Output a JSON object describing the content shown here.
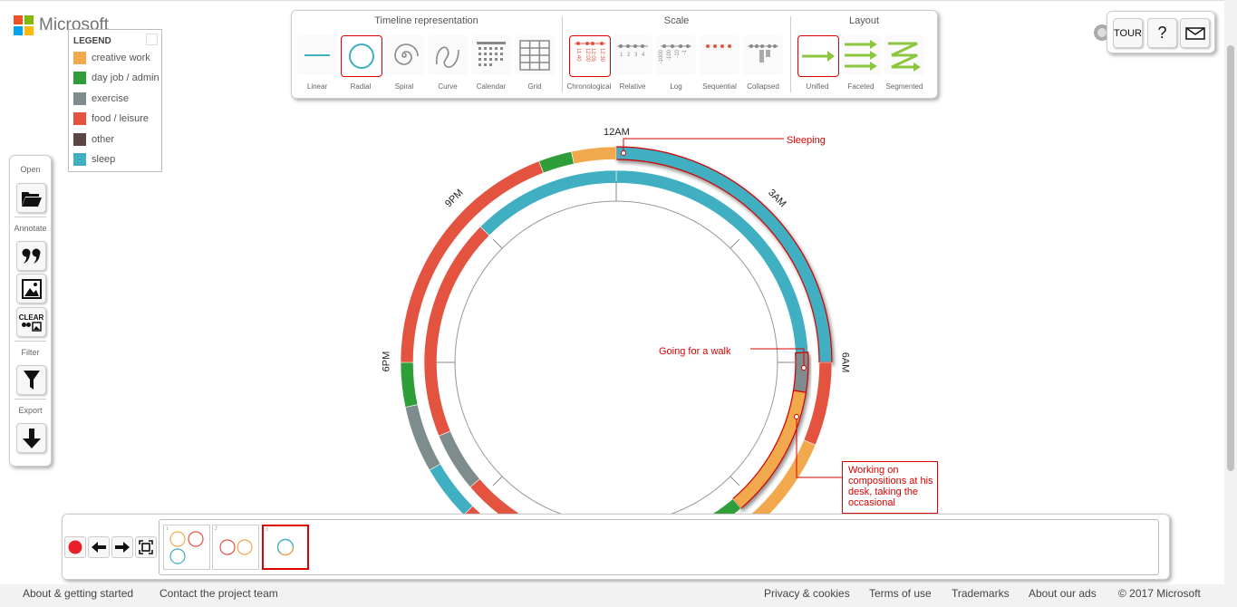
{
  "brand": {
    "name": "Microsoft"
  },
  "legend": {
    "title": "LEGEND",
    "items": [
      {
        "label": "creative work",
        "color": "#f2a94e"
      },
      {
        "label": "day job / admin",
        "color": "#2e9e38"
      },
      {
        "label": "exercise",
        "color": "#7e8c8d"
      },
      {
        "label": "food / leisure",
        "color": "#e3533f"
      },
      {
        "label": "other",
        "color": "#5a4743"
      },
      {
        "label": "sleep",
        "color": "#40afc2"
      }
    ]
  },
  "left_panel": {
    "open_label": "Open",
    "annotate_label": "Annotate",
    "clear_label": "CLEAR",
    "filter_label": "Filter",
    "export_label": "Export"
  },
  "toolbar": {
    "representation": {
      "title": "Timeline representation",
      "options": [
        "Linear",
        "Radial",
        "Spiral",
        "Curve",
        "Calendar",
        "Grid"
      ],
      "selected": "Radial"
    },
    "scale": {
      "title": "Scale",
      "options": [
        "Chronological",
        "Relative",
        "Log",
        "Sequential",
        "Collapsed"
      ],
      "selected": "Chronological",
      "chrono_ticks": [
        "11:40",
        "12:00",
        "12:05",
        "12:30"
      ],
      "relative_ticks": [
        "1",
        "2",
        "3",
        "4"
      ],
      "log_ticks": [
        "-1000",
        "-100",
        "-10",
        "-1"
      ]
    },
    "layout": {
      "title": "Layout",
      "options": [
        "Unified",
        "Faceted",
        "Segmented"
      ],
      "selected": "Unified"
    }
  },
  "top_right": {
    "tour_label": "TOUR",
    "help_label": "?"
  },
  "chart": {
    "clock_labels": [
      "12AM",
      "3AM",
      "6AM",
      "6PM",
      "9PM"
    ],
    "annotations": {
      "sleeping": "Sleeping",
      "walk": "Going for a walk",
      "compositions": "Working on compositions at his desk, taking the occasional"
    },
    "colors": {
      "creative": "#f2a94e",
      "dayjob": "#2e9e38",
      "exercise": "#7e8c8d",
      "food": "#e3533f",
      "sleep": "#40afc2",
      "highlight": "#d00000"
    }
  },
  "chart_data": {
    "type": "radial-timeline",
    "rings": [
      {
        "name": "outer",
        "segments": [
          {
            "activity": "sleep",
            "start_hour": 0,
            "end_hour": 6
          },
          {
            "activity": "food / leisure",
            "start_hour": 6,
            "end_hour": 7.5
          },
          {
            "activity": "creative work",
            "start_hour": 7.5,
            "end_hour": 9.5
          },
          {
            "activity": "day job / admin",
            "start_hour": 9.5,
            "end_hour": 10.2
          },
          {
            "activity": "food / leisure",
            "start_hour": 14.4,
            "end_hour": 15.0
          },
          {
            "activity": "sleep",
            "start_hour": 15.0,
            "end_hour": 16.0
          },
          {
            "activity": "exercise",
            "start_hour": 16.0,
            "end_hour": 17.2
          },
          {
            "activity": "day job / admin",
            "start_hour": 17.2,
            "end_hour": 18.0
          },
          {
            "activity": "food / leisure",
            "start_hour": 18.0,
            "end_hour": 22.6
          },
          {
            "activity": "day job / admin",
            "start_hour": 22.6,
            "end_hour": 23.2
          },
          {
            "activity": "creative work",
            "start_hour": 23.2,
            "end_hour": 24.0
          }
        ]
      },
      {
        "name": "inner",
        "segments": [
          {
            "activity": "sleep",
            "start_hour": 0,
            "end_hour": 5.8
          },
          {
            "activity": "exercise",
            "start_hour": 5.8,
            "end_hour": 6.6
          },
          {
            "activity": "creative work",
            "start_hour": 6.6,
            "end_hour": 9.3
          },
          {
            "activity": "day job / admin",
            "start_hour": 9.3,
            "end_hour": 10.2
          },
          {
            "activity": "food / leisure",
            "start_hour": 14.2,
            "end_hour": 15.3
          },
          {
            "activity": "exercise",
            "start_hour": 15.3,
            "end_hour": 16.5
          },
          {
            "activity": "food / leisure",
            "start_hour": 16.5,
            "end_hour": 21.0
          },
          {
            "activity": "sleep",
            "start_hour": 21.0,
            "end_hour": 24.0
          }
        ]
      }
    ],
    "axis_labels": [
      "12AM",
      "3AM",
      "6AM",
      "6PM",
      "9PM"
    ]
  },
  "playback": {
    "frame_count": 3,
    "active_frame": 3,
    "frame_numbers": [
      "1",
      "2",
      "3"
    ]
  },
  "footer": {
    "about": "About & getting started",
    "contact": "Contact the project team",
    "privacy": "Privacy & cookies",
    "terms": "Terms of use",
    "trademarks": "Trademarks",
    "ads": "About our ads",
    "copyright": "© 2017 Microsoft"
  }
}
